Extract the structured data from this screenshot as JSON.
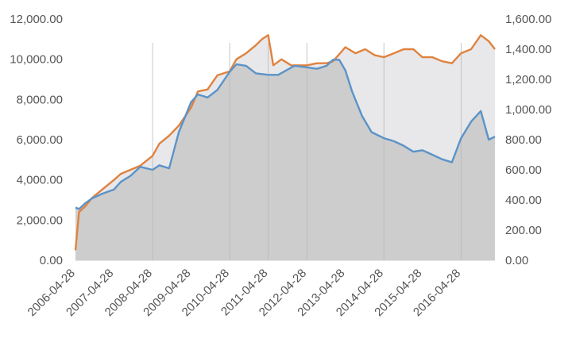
{
  "chart_data": {
    "type": "area",
    "title": "",
    "xlabel": "",
    "ylabel": "",
    "x_tick_labels": [
      "2006-04-28",
      "2007-04-28",
      "2008-04-28",
      "2009-04-28",
      "2010-04-28",
      "2011-04-28",
      "2012-04-28",
      "2013-04-28",
      "2014-04-28",
      "2015-04-28",
      "2016-04-28"
    ],
    "y_left": {
      "lim": [
        0,
        12000
      ],
      "tick_labels": [
        "0.00",
        "2,000.00",
        "4,000.00",
        "6,000.00",
        "8,000.00",
        "10,000.00",
        "12,000.00"
      ]
    },
    "y_right": {
      "lim": [
        0,
        1600
      ],
      "tick_labels": [
        "0.00",
        "200.00",
        "400.00",
        "600.00",
        "800.00",
        "1,000.00",
        "1,200.00",
        "1,400.00",
        "1,600.00"
      ]
    },
    "grid": false,
    "legend": "none",
    "series": [
      {
        "axis": "left",
        "color": "#e0823f",
        "fill": "#e4e4e6",
        "points": [
          [
            "2006-04-28",
            500
          ],
          [
            "2006-06-01",
            2400
          ],
          [
            "2006-08-01",
            2700
          ],
          [
            "2006-10-01",
            3100
          ],
          [
            "2007-01-01",
            3500
          ],
          [
            "2007-04-28",
            4000
          ],
          [
            "2007-07-01",
            4300
          ],
          [
            "2007-10-01",
            4500
          ],
          [
            "2008-01-01",
            4700
          ],
          [
            "2008-04-28",
            5200
          ],
          [
            "2008-07-01",
            5800
          ],
          [
            "2008-10-01",
            6200
          ],
          [
            "2009-01-01",
            6700
          ],
          [
            "2009-04-28",
            7600
          ],
          [
            "2009-07-01",
            8400
          ],
          [
            "2009-10-01",
            8500
          ],
          [
            "2010-01-01",
            9200
          ],
          [
            "2010-04-28",
            9400
          ],
          [
            "2010-07-01",
            10000
          ],
          [
            "2010-10-01",
            10300
          ],
          [
            "2011-01-01",
            10700
          ],
          [
            "2011-03-01",
            11000
          ],
          [
            "2011-04-28",
            11200
          ],
          [
            "2011-06-15",
            9700
          ],
          [
            "2011-09-01",
            10000
          ],
          [
            "2011-12-01",
            9700
          ],
          [
            "2012-04-28",
            9700
          ],
          [
            "2012-08-01",
            9800
          ],
          [
            "2012-11-01",
            9800
          ],
          [
            "2013-01-01",
            9900
          ],
          [
            "2013-04-28",
            10600
          ],
          [
            "2013-08-01",
            10300
          ],
          [
            "2013-11-01",
            10500
          ],
          [
            "2014-02-01",
            10200
          ],
          [
            "2014-04-28",
            10100
          ],
          [
            "2014-08-01",
            10300
          ],
          [
            "2014-11-01",
            10500
          ],
          [
            "2015-02-01",
            10500
          ],
          [
            "2015-04-28",
            10100
          ],
          [
            "2015-08-01",
            10100
          ],
          [
            "2015-11-01",
            9900
          ],
          [
            "2016-02-01",
            9800
          ],
          [
            "2016-04-28",
            10300
          ],
          [
            "2016-08-01",
            10500
          ],
          [
            "2016-11-01",
            11200
          ],
          [
            "2017-01-15",
            10900
          ],
          [
            "2017-03-15",
            10500
          ]
        ]
      },
      {
        "axis": "right",
        "color": "#5b93c8",
        "fill": "#cacaca",
        "points": [
          [
            "2006-04-28",
            350
          ],
          [
            "2006-06-01",
            340
          ],
          [
            "2006-08-01",
            380
          ],
          [
            "2006-10-01",
            410
          ],
          [
            "2007-01-01",
            440
          ],
          [
            "2007-04-28",
            470
          ],
          [
            "2007-07-01",
            520
          ],
          [
            "2007-10-01",
            560
          ],
          [
            "2008-01-01",
            620
          ],
          [
            "2008-04-28",
            600
          ],
          [
            "2008-07-01",
            630
          ],
          [
            "2008-10-01",
            610
          ],
          [
            "2009-01-01",
            850
          ],
          [
            "2009-04-28",
            1050
          ],
          [
            "2009-07-01",
            1100
          ],
          [
            "2009-10-01",
            1080
          ],
          [
            "2010-01-01",
            1130
          ],
          [
            "2010-04-28",
            1250
          ],
          [
            "2010-07-01",
            1300
          ],
          [
            "2010-10-01",
            1290
          ],
          [
            "2011-01-01",
            1240
          ],
          [
            "2011-04-28",
            1230
          ],
          [
            "2011-08-01",
            1230
          ],
          [
            "2012-01-01",
            1290
          ],
          [
            "2012-04-28",
            1280
          ],
          [
            "2012-08-01",
            1270
          ],
          [
            "2012-11-01",
            1290
          ],
          [
            "2013-01-01",
            1330
          ],
          [
            "2013-03-01",
            1330
          ],
          [
            "2013-04-28",
            1260
          ],
          [
            "2013-07-01",
            1120
          ],
          [
            "2013-10-01",
            960
          ],
          [
            "2014-01-01",
            850
          ],
          [
            "2014-04-28",
            810
          ],
          [
            "2014-08-01",
            790
          ],
          [
            "2014-11-01",
            760
          ],
          [
            "2015-02-01",
            720
          ],
          [
            "2015-04-28",
            730
          ],
          [
            "2015-08-01",
            700
          ],
          [
            "2015-11-01",
            670
          ],
          [
            "2016-02-01",
            650
          ],
          [
            "2016-04-28",
            810
          ],
          [
            "2016-08-01",
            920
          ],
          [
            "2016-11-01",
            990
          ],
          [
            "2017-01-15",
            800
          ],
          [
            "2017-03-15",
            820
          ]
        ]
      }
    ]
  }
}
